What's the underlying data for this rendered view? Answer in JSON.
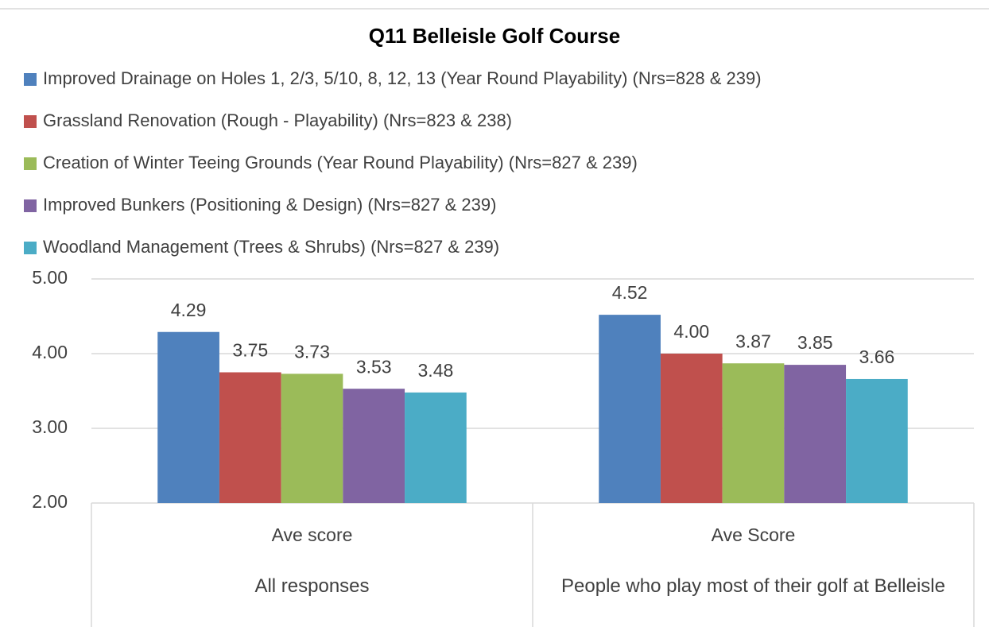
{
  "chart_data": {
    "type": "bar",
    "title": "Q11 Belleisle Golf Course",
    "categories": [
      "Ave score",
      "Ave Score"
    ],
    "category_groups": [
      "All responses",
      "People who play most of their golf at Belleisle"
    ],
    "series": [
      {
        "name": "Improved Drainage on Holes 1, 2/3, 5/10, 8, 12, 13 (Year Round Playability) (Nrs=828 & 239)",
        "color": "#4f81bd",
        "values": [
          4.29,
          4.52
        ],
        "value_labels": [
          "4.29",
          "4.52"
        ]
      },
      {
        "name": "Grassland Renovation (Rough - Playability) (Nrs=823 & 238)",
        "color": "#c0504d",
        "values": [
          3.75,
          4.0
        ],
        "value_labels": [
          "3.75",
          "4.00"
        ]
      },
      {
        "name": "Creation of Winter Teeing Grounds (Year Round Playability) (Nrs=827 & 239)",
        "color": "#9bbb59",
        "values": [
          3.73,
          3.87
        ],
        "value_labels": [
          "3.73",
          "3.87"
        ]
      },
      {
        "name": "Improved Bunkers (Positioning & Design) (Nrs=827 & 239)",
        "color": "#8064a2",
        "values": [
          3.53,
          3.85
        ],
        "value_labels": [
          "3.53",
          "3.85"
        ]
      },
      {
        "name": "Woodland Management (Trees & Shrubs) (Nrs=827 & 239)",
        "color": "#4bacc6",
        "values": [
          3.48,
          3.66
        ],
        "value_labels": [
          "3.48",
          "3.66"
        ]
      }
    ],
    "ylim": [
      2,
      5
    ],
    "yticks": [
      {
        "value": 2,
        "label": "2.00"
      },
      {
        "value": 3,
        "label": "3.00"
      },
      {
        "value": 4,
        "label": "4.00"
      },
      {
        "value": 5,
        "label": "5.00"
      }
    ],
    "grid": true,
    "legend": "top"
  }
}
